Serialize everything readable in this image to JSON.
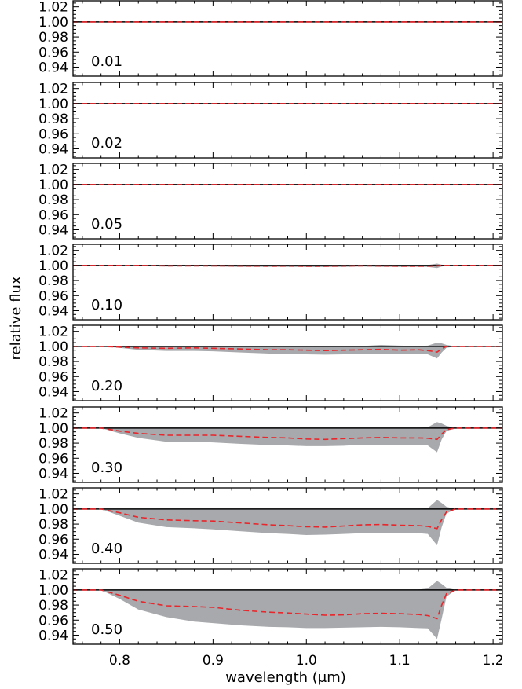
{
  "chart_data": {
    "type": "area",
    "xlabel": "wavelength (μm)",
    "ylabel": "relative flux",
    "xlim": [
      0.75,
      1.21
    ],
    "ylim": [
      0.928,
      1.028
    ],
    "x_ticks": [
      "0.8",
      "0.9",
      "1.0",
      "1.1",
      "1.2"
    ],
    "y_ticks": [
      "1.02",
      "1.00",
      "0.98",
      "0.96",
      "0.94"
    ],
    "reference_line": 1.0,
    "colors": {
      "band": "#a7a9ac",
      "median": "#e8262b",
      "reference": "#000000",
      "frame": "#000000"
    },
    "x": [
      0.75,
      0.78,
      0.8,
      0.82,
      0.85,
      0.88,
      0.9,
      0.93,
      0.96,
      0.98,
      1.0,
      1.02,
      1.04,
      1.06,
      1.08,
      1.1,
      1.12,
      1.13,
      1.14,
      1.145,
      1.15,
      1.16,
      1.21
    ],
    "panels": [
      {
        "label": "0.01",
        "median": [
          1.0,
          1.0,
          1.0,
          1.0,
          1.0,
          1.0,
          1.0,
          1.0,
          1.0,
          1.0,
          1.0,
          1.0,
          1.0,
          1.0,
          1.0,
          1.0,
          1.0,
          1.0,
          1.0,
          1.0,
          1.0,
          1.0,
          1.0
        ],
        "lower": [
          1.0,
          1.0,
          1.0,
          1.0,
          1.0,
          1.0,
          1.0,
          1.0,
          1.0,
          1.0,
          1.0,
          1.0,
          1.0,
          1.0,
          1.0,
          1.0,
          1.0,
          1.0,
          1.0,
          1.0,
          1.0,
          1.0,
          1.0
        ],
        "upper": [
          1.0,
          1.0,
          1.0,
          1.0,
          1.0,
          1.0,
          1.0,
          1.0,
          1.0,
          1.0,
          1.0,
          1.0,
          1.0,
          1.0,
          1.0,
          1.0,
          1.0,
          1.0,
          1.0,
          1.0,
          1.0,
          1.0,
          1.0
        ]
      },
      {
        "label": "0.02",
        "median": [
          1.0,
          1.0,
          1.0,
          1.0,
          1.0,
          1.0,
          1.0,
          1.0,
          1.0,
          1.0,
          1.0,
          1.0,
          1.0,
          1.0,
          1.0,
          1.0,
          1.0,
          1.0,
          1.0,
          1.0,
          1.0,
          1.0,
          1.0
        ],
        "lower": [
          1.0,
          1.0,
          1.0,
          1.0,
          1.0,
          1.0,
          1.0,
          1.0,
          1.0,
          1.0,
          1.0,
          1.0,
          1.0,
          1.0,
          1.0,
          1.0,
          1.0,
          1.0,
          1.0,
          1.0,
          1.0,
          1.0,
          1.0
        ],
        "upper": [
          1.0,
          1.0,
          1.0,
          1.0,
          1.0,
          1.0,
          1.0,
          1.0,
          1.0,
          1.0,
          1.0,
          1.0,
          1.0,
          1.0,
          1.0,
          1.0,
          1.0,
          1.0,
          1.0,
          1.0,
          1.0,
          1.0,
          1.0
        ]
      },
      {
        "label": "0.05",
        "median": [
          1.0,
          1.0,
          1.0,
          1.0,
          1.0,
          1.0,
          1.0,
          1.0,
          1.0,
          1.0,
          1.0,
          1.0,
          1.0,
          1.0,
          1.0,
          1.0,
          1.0,
          1.0,
          1.0,
          1.0,
          1.0,
          1.0,
          1.0
        ],
        "lower": [
          1.0,
          1.0,
          1.0,
          1.0,
          1.0,
          1.0,
          1.0,
          1.0,
          1.0,
          1.0,
          1.0,
          1.0,
          1.0,
          1.0,
          1.0,
          1.0,
          1.0,
          0.9995,
          0.999,
          0.9995,
          1.0,
          1.0,
          1.0
        ],
        "upper": [
          1.0,
          1.0,
          1.0,
          1.0,
          1.0,
          1.0,
          1.0,
          1.0,
          1.0,
          1.0,
          1.0,
          1.0,
          1.0,
          1.0,
          1.0,
          1.0,
          1.0,
          1.0003,
          1.001,
          1.0005,
          1.0,
          1.0,
          1.0
        ]
      },
      {
        "label": "0.10",
        "median": [
          1.0,
          1.0,
          1.0,
          1.0,
          0.9995,
          0.9995,
          0.9995,
          0.9993,
          0.999,
          0.9992,
          0.999,
          0.999,
          0.9993,
          0.9995,
          0.9993,
          0.999,
          0.999,
          0.999,
          0.9995,
          1.0,
          1.0,
          1.0,
          1.0
        ],
        "lower": [
          1.0,
          1.0,
          1.0,
          0.9995,
          0.9985,
          0.999,
          0.9985,
          0.998,
          0.998,
          0.998,
          0.9978,
          0.9978,
          0.998,
          0.9985,
          0.998,
          0.998,
          0.998,
          0.998,
          0.9965,
          0.9985,
          0.9995,
          1.0,
          1.0
        ],
        "upper": [
          1.0,
          1.0,
          1.0,
          1.0002,
          1.0005,
          1.0005,
          1.0005,
          1.0005,
          1.0003,
          1.0003,
          1.0003,
          1.0003,
          1.0005,
          1.0005,
          1.0005,
          1.0003,
          1.0003,
          1.0005,
          1.0025,
          1.001,
          1.0005,
          1.0,
          1.0
        ]
      },
      {
        "label": "0.20",
        "median": [
          1.0,
          1.0,
          0.999,
          0.998,
          0.9975,
          0.998,
          0.9975,
          0.9965,
          0.9955,
          0.9955,
          0.995,
          0.9945,
          0.995,
          0.9955,
          0.996,
          0.995,
          0.9955,
          0.9945,
          0.9925,
          0.997,
          1.0,
          1.0,
          1.0
        ],
        "lower": [
          1.0,
          1.0,
          0.998,
          0.9955,
          0.994,
          0.994,
          0.9935,
          0.992,
          0.9905,
          0.99,
          0.9895,
          0.989,
          0.9895,
          0.99,
          0.9905,
          0.99,
          0.9905,
          0.9895,
          0.984,
          0.992,
          0.998,
          1.0,
          1.0
        ],
        "upper": [
          1.0,
          1.0,
          1.0,
          1.0005,
          1.0005,
          1.0005,
          1.0005,
          1.0005,
          1.0003,
          1.0003,
          1.0003,
          1.0003,
          1.0005,
          1.0005,
          1.002,
          1.001,
          1.0005,
          1.001,
          1.005,
          1.004,
          1.002,
          1.0,
          1.0
        ]
      },
      {
        "label": "0.30",
        "median": [
          1.0,
          1.0,
          0.996,
          0.993,
          0.9905,
          0.9905,
          0.9905,
          0.989,
          0.9875,
          0.987,
          0.9855,
          0.985,
          0.986,
          0.987,
          0.9875,
          0.987,
          0.987,
          0.9865,
          0.985,
          0.992,
          0.998,
          1.0,
          1.0
        ],
        "lower": [
          1.0,
          1.0,
          0.993,
          0.987,
          0.982,
          0.982,
          0.981,
          0.979,
          0.9775,
          0.977,
          0.976,
          0.976,
          0.9765,
          0.978,
          0.978,
          0.978,
          0.978,
          0.977,
          0.968,
          0.985,
          0.996,
          1.0,
          1.0
        ],
        "upper": [
          1.0,
          1.0,
          1.0,
          1.0003,
          1.0005,
          1.0005,
          1.0005,
          1.0005,
          1.0005,
          1.0005,
          1.0005,
          1.0005,
          1.0005,
          1.0005,
          1.0005,
          1.0005,
          1.0005,
          1.001,
          1.008,
          1.006,
          1.003,
          1.0,
          1.0
        ]
      },
      {
        "label": "0.40",
        "median": [
          1.0,
          1.0,
          0.995,
          0.989,
          0.9855,
          0.9845,
          0.984,
          0.9815,
          0.979,
          0.978,
          0.9765,
          0.976,
          0.9775,
          0.979,
          0.9795,
          0.9785,
          0.978,
          0.977,
          0.974,
          0.986,
          0.996,
          1.0,
          1.0
        ],
        "lower": [
          1.0,
          1.0,
          0.991,
          0.982,
          0.976,
          0.9745,
          0.973,
          0.9705,
          0.968,
          0.967,
          0.9655,
          0.966,
          0.967,
          0.968,
          0.9685,
          0.968,
          0.968,
          0.967,
          0.952,
          0.976,
          0.994,
          1.0,
          1.0
        ],
        "upper": [
          1.0,
          1.0,
          1.0,
          1.0003,
          1.0005,
          1.0005,
          1.0005,
          1.0005,
          1.0005,
          1.0005,
          1.0005,
          1.0005,
          1.0005,
          1.0005,
          1.0005,
          1.0005,
          1.0005,
          1.001,
          1.012,
          1.008,
          1.003,
          1.0,
          1.0
        ]
      },
      {
        "label": "0.50",
        "median": [
          1.0,
          1.0,
          0.993,
          0.985,
          0.979,
          0.978,
          0.977,
          0.973,
          0.9705,
          0.9695,
          0.968,
          0.9665,
          0.967,
          0.9685,
          0.969,
          0.9685,
          0.9675,
          0.966,
          0.962,
          0.98,
          0.995,
          1.0,
          1.0
        ],
        "lower": [
          1.0,
          1.0,
          0.988,
          0.974,
          0.964,
          0.958,
          0.956,
          0.953,
          0.951,
          0.9505,
          0.9495,
          0.9495,
          0.95,
          0.9505,
          0.951,
          0.9505,
          0.9495,
          0.949,
          0.935,
          0.962,
          0.991,
          1.0,
          1.0
        ],
        "upper": [
          1.0,
          1.0,
          1.0,
          1.0002,
          1.0003,
          1.0003,
          1.0003,
          1.0003,
          1.0003,
          1.0003,
          1.0003,
          1.0003,
          1.0003,
          1.0003,
          1.0003,
          1.0003,
          1.0005,
          1.002,
          1.012,
          1.008,
          1.003,
          1.0,
          1.0
        ]
      }
    ]
  }
}
